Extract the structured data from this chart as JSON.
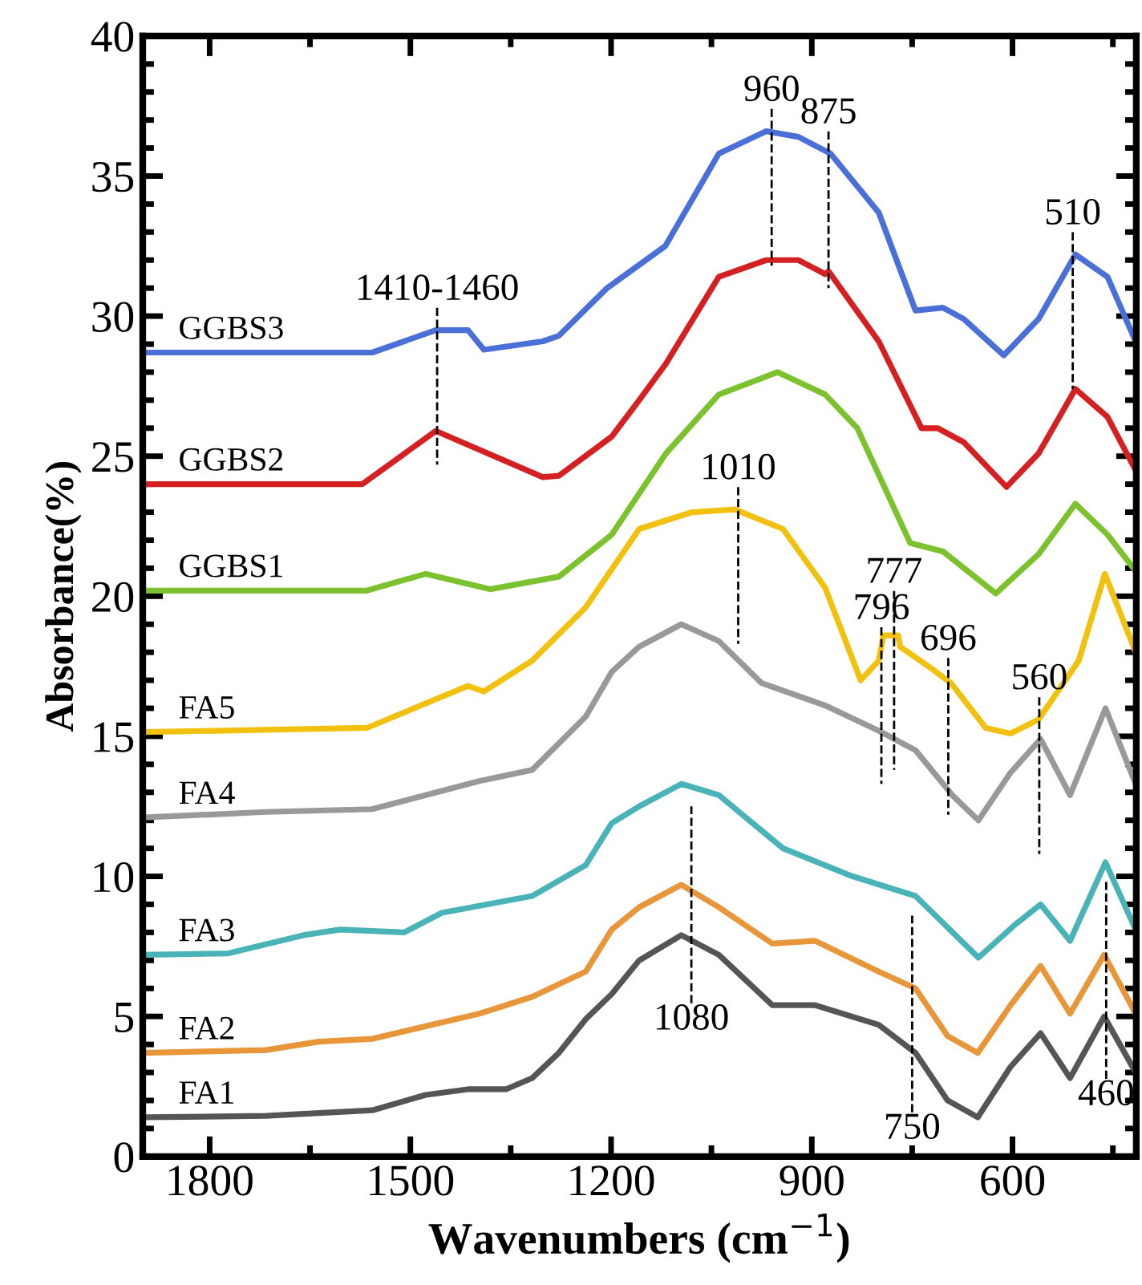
{
  "chart_data": {
    "type": "line",
    "xlabel": "Wavenumbers (cm$^{−1}$)",
    "ylabel": "Absorbance(%)",
    "xlim": [
      1900,
      415
    ],
    "ylim": [
      0,
      40
    ],
    "xticks": [
      1800,
      1500,
      1200,
      900,
      600
    ],
    "yticks": [
      0,
      5,
      10,
      15,
      20,
      25,
      30,
      35,
      40
    ],
    "series": [
      {
        "name": "GGBS3",
        "color": "#4a6fd6",
        "x": [
          1900,
          1557,
          1462,
          1414,
          1390,
          1302,
          1278,
          1206,
          1119,
          1039,
          968,
          920,
          872,
          800,
          745,
          704,
          673,
          613,
          561,
          506,
          458,
          416
        ],
        "values": [
          28.7,
          28.7,
          29.5,
          29.5,
          28.8,
          29.1,
          29.3,
          31.0,
          32.5,
          35.8,
          36.6,
          36.4,
          35.8,
          33.7,
          30.2,
          30.3,
          29.9,
          28.6,
          29.9,
          32.2,
          31.4,
          29.1
        ]
      },
      {
        "name": "GGBS2",
        "color": "#d42020",
        "x": [
          1900,
          1572,
          1462,
          1302,
          1278,
          1199,
          1158,
          1118,
          1039,
          968,
          920,
          880,
          875,
          800,
          736,
          712,
          673,
          609,
          561,
          506,
          458,
          416
        ],
        "values": [
          24.0,
          24.0,
          25.9,
          24.25,
          24.3,
          25.7,
          27.0,
          28.3,
          31.4,
          32.0,
          32.0,
          31.5,
          31.6,
          29.1,
          26.0,
          26.0,
          25.5,
          23.9,
          25.1,
          27.4,
          26.4,
          24.5
        ]
      },
      {
        "name": "GGBS1",
        "color": "#7cc22e",
        "x": [
          1900,
          1565,
          1477,
          1381,
          1278,
          1199,
          1118,
          1039,
          951,
          880,
          832,
          753,
          704,
          625,
          561,
          506,
          458,
          416
        ],
        "values": [
          20.2,
          20.2,
          20.8,
          20.25,
          20.7,
          22.2,
          25.1,
          27.2,
          28.0,
          27.2,
          26.0,
          21.9,
          21.6,
          20.1,
          21.5,
          23.3,
          22.2,
          20.9
        ]
      },
      {
        "name": "FA5",
        "color": "#f2c10f",
        "x": [
          1900,
          1565,
          1414,
          1390,
          1318,
          1238,
          1158,
          1079,
          1015,
          943,
          880,
          827,
          800,
          793,
          771,
          768,
          720,
          692,
          640,
          603,
          561,
          501,
          462,
          416
        ],
        "values": [
          15.15,
          15.3,
          16.8,
          16.6,
          17.7,
          19.6,
          22.4,
          23.0,
          23.1,
          22.4,
          20.3,
          17.0,
          17.7,
          18.6,
          18.6,
          18.2,
          17.4,
          16.9,
          15.3,
          15.1,
          15.6,
          17.7,
          20.8,
          18.0
        ]
      },
      {
        "name": "FA4",
        "color": "#999999",
        "x": [
          1900,
          1716,
          1557,
          1397,
          1318,
          1238,
          1199,
          1158,
          1095,
          1039,
          975,
          880,
          800,
          745,
          690,
          651,
          603,
          558,
          514,
          461,
          416
        ],
        "values": [
          12.1,
          12.3,
          12.4,
          13.4,
          13.8,
          15.7,
          17.3,
          18.2,
          19.0,
          18.4,
          16.9,
          16.1,
          15.2,
          14.5,
          12.9,
          12.0,
          13.7,
          14.9,
          12.9,
          16.0,
          13.3
        ]
      },
      {
        "name": "FA3",
        "color": "#4ab3b8",
        "x": [
          1900,
          1772,
          1660,
          1605,
          1509,
          1453,
          1318,
          1238,
          1199,
          1158,
          1095,
          1039,
          943,
          839,
          745,
          651,
          595,
          558,
          514,
          461,
          416
        ],
        "values": [
          7.2,
          7.25,
          7.9,
          8.1,
          8.0,
          8.7,
          9.3,
          10.4,
          11.9,
          12.5,
          13.3,
          12.9,
          11.0,
          10.0,
          9.3,
          7.1,
          8.3,
          9.0,
          7.7,
          10.5,
          8.1
        ]
      },
      {
        "name": "FA2",
        "color": "#e8963a",
        "x": [
          1900,
          1716,
          1637,
          1557,
          1397,
          1318,
          1238,
          1199,
          1158,
          1095,
          1039,
          959,
          895,
          800,
          745,
          697,
          652,
          603,
          558,
          514,
          463,
          416
        ],
        "values": [
          3.7,
          3.8,
          4.1,
          4.2,
          5.1,
          5.7,
          6.6,
          8.1,
          8.9,
          9.7,
          8.9,
          7.6,
          7.7,
          6.6,
          6.0,
          4.3,
          3.7,
          5.4,
          6.8,
          5.1,
          7.2,
          5.1
        ]
      },
      {
        "name": "FA1",
        "color": "#555555",
        "x": [
          1900,
          1716,
          1557,
          1477,
          1414,
          1357,
          1318,
          1278,
          1238,
          1199,
          1158,
          1095,
          1039,
          959,
          895,
          800,
          745,
          697,
          652,
          603,
          558,
          514,
          463,
          416
        ],
        "values": [
          1.4,
          1.45,
          1.65,
          2.2,
          2.4,
          2.4,
          2.8,
          3.7,
          4.9,
          5.8,
          7.0,
          7.9,
          7.2,
          5.4,
          5.4,
          4.7,
          3.7,
          2.0,
          1.4,
          3.2,
          4.4,
          2.8,
          5.0,
          3.0
        ]
      }
    ],
    "annotations": [
      {
        "text": "1410-1460",
        "x": 1460,
        "y": 29.5
      },
      {
        "text": "960",
        "x": 960,
        "y": 36.6
      },
      {
        "text": "875",
        "x": 875,
        "y": 35.8
      },
      {
        "text": "510",
        "x": 510,
        "y": 32.2
      },
      {
        "text": "1010",
        "x": 1010,
        "y": 23.1
      },
      {
        "text": "796",
        "x": 796,
        "y": 18.1
      },
      {
        "text": "777",
        "x": 777,
        "y": 18.6
      },
      {
        "text": "696",
        "x": 696,
        "y": 17.0
      },
      {
        "text": "560",
        "x": 560,
        "y": 15.6
      },
      {
        "text": "1080",
        "x": 1080,
        "y": 7.7
      },
      {
        "text": "750",
        "x": 750,
        "y": 3.8
      },
      {
        "text": "460",
        "x": 460,
        "y": 5.0
      }
    ]
  }
}
